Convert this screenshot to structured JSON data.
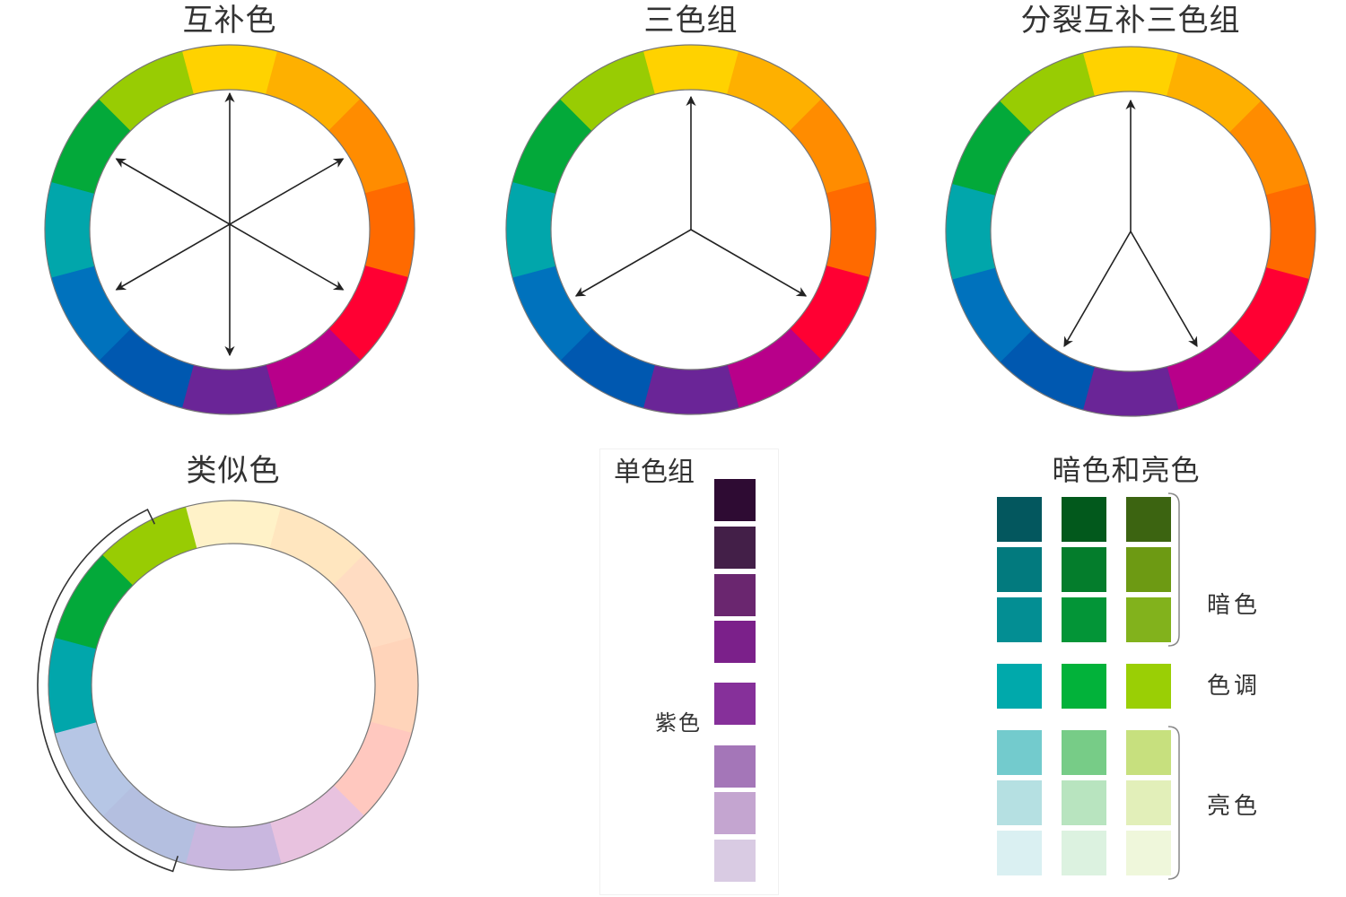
{
  "complementary": {
    "title": "互补色"
  },
  "triad": {
    "title": "三色组"
  },
  "split_complementary": {
    "title": "分裂互补三色组"
  },
  "analogous": {
    "title": "类似色"
  },
  "monochromatic": {
    "title": "单色组",
    "label": "紫色",
    "swatches": [
      "#2e0b33",
      "#431f48",
      "#6a266f",
      "#7b208a",
      "#86309a",
      "#a476b8",
      "#c4a5d0",
      "#d9cbe3"
    ]
  },
  "shades_tints": {
    "title": "暗色和亮色",
    "row_labels": {
      "shade": "暗色",
      "tone": "色调",
      "tint": "亮色"
    },
    "columns": [
      {
        "name": "teal",
        "shades": [
          "#03575e",
          "#027a7e",
          "#038e93"
        ],
        "tone": "#00a9ab",
        "tints": [
          "#73cbcd",
          "#b5e0e2",
          "#daf0f2"
        ]
      },
      {
        "name": "green",
        "shades": [
          "#02591c",
          "#047d2c",
          "#039537"
        ],
        "tone": "#02b23a",
        "tints": [
          "#77cc87",
          "#b8e4bf",
          "#dcf2e0"
        ]
      },
      {
        "name": "yellow-green",
        "shades": [
          "#3c6411",
          "#6d9a13",
          "#82b21c"
        ],
        "tone": "#9acf05",
        "tints": [
          "#c7e07e",
          "#e2efb9",
          "#eff7db"
        ]
      }
    ]
  },
  "wheel_colors": [
    "#ffd200",
    "#feb000",
    "#ff8c00",
    "#ff6a00",
    "#ff0033",
    "#b8008a",
    "#6a2597",
    "#0058b0",
    "#0072bd",
    "#01a6ab",
    "#03a93a",
    "#98cc03"
  ],
  "analogous_colors": [
    "#fff2c8",
    "#ffe6bf",
    "#ffdcc2",
    "#ffd4ba",
    "#ffc8bf",
    "#e8c2df",
    "#c9b7df",
    "#b4bfe0",
    "#b6c6e5",
    "#01a6ab",
    "#03a93a",
    "#98cc03"
  ]
}
